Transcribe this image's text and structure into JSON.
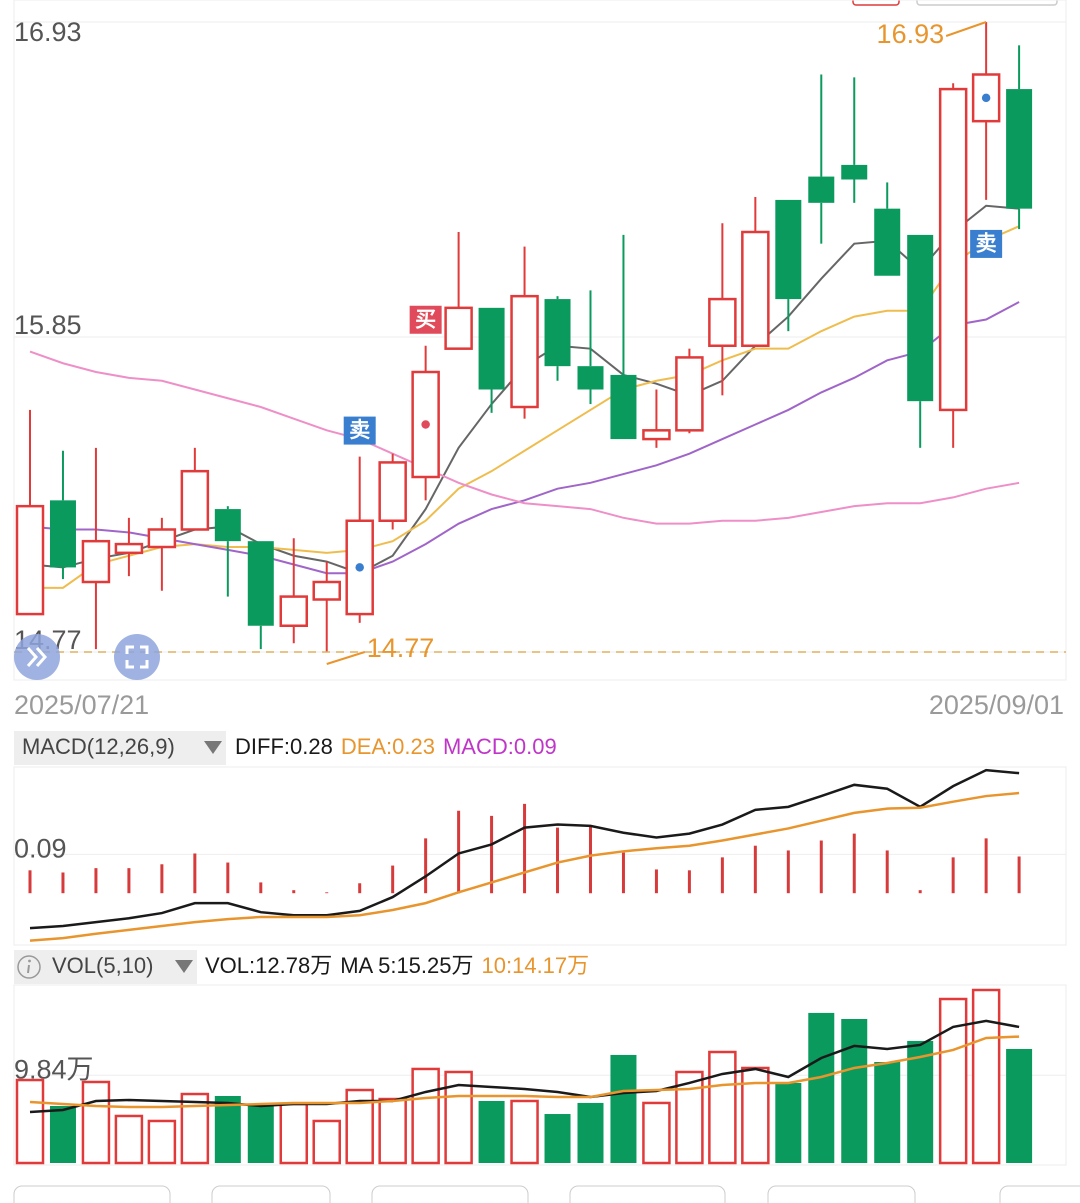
{
  "chart_data": [
    {
      "type": "candlestick",
      "categories": [
        "2025/07/21",
        null,
        null,
        null,
        null,
        null,
        null,
        null,
        null,
        null,
        null,
        null,
        null,
        null,
        null,
        null,
        null,
        null,
        null,
        null,
        null,
        null,
        null,
        null,
        null,
        null,
        null,
        null,
        null,
        null,
        "2025/09/01"
      ],
      "open": [
        14.9,
        15.29,
        15.01,
        15.11,
        15.13,
        15.19,
        15.26,
        15.15,
        14.86,
        14.95,
        14.9,
        15.22,
        15.37,
        15.81,
        15.95,
        15.61,
        15.98,
        15.75,
        15.72,
        15.5,
        15.53,
        15.82,
        15.82,
        16.32,
        16.4,
        16.44,
        16.29,
        16.2,
        15.6,
        16.59,
        16.7
      ],
      "high": [
        15.6,
        15.46,
        15.47,
        15.23,
        15.23,
        15.47,
        15.27,
        15.15,
        15.16,
        15.08,
        15.44,
        15.45,
        15.82,
        16.21,
        15.95,
        16.16,
        15.99,
        16.01,
        16.2,
        15.67,
        15.81,
        16.24,
        16.33,
        16.32,
        16.75,
        16.74,
        16.38,
        16.2,
        16.72,
        16.93,
        16.85
      ],
      "low": [
        14.9,
        15.02,
        14.78,
        15.03,
        14.98,
        15.19,
        14.96,
        14.78,
        14.8,
        14.77,
        14.87,
        15.19,
        15.29,
        15.81,
        15.59,
        15.57,
        15.7,
        15.62,
        15.5,
        15.47,
        15.52,
        15.65,
        15.82,
        15.87,
        16.17,
        16.31,
        16.06,
        15.47,
        15.47,
        16.32,
        16.22
      ],
      "close": [
        15.27,
        15.06,
        15.15,
        15.14,
        15.19,
        15.39,
        15.15,
        14.86,
        14.96,
        15.01,
        15.22,
        15.42,
        15.73,
        15.95,
        15.67,
        15.99,
        15.75,
        15.67,
        15.5,
        15.53,
        15.78,
        15.98,
        16.21,
        15.98,
        16.31,
        16.39,
        16.06,
        15.63,
        16.7,
        16.75,
        16.29
      ],
      "up_color": "#e03a3a",
      "down_color": "#0b9a5d",
      "ylim": [
        14.77,
        16.93
      ],
      "yticks": [
        16.93,
        15.85,
        14.77
      ],
      "grid": true,
      "lines": [
        {
          "color": "#666666",
          "values": [
            15.07,
            15.06,
            15.09,
            15.11,
            15.15,
            15.19,
            15.2,
            15.14,
            15.1,
            15.08,
            15.04,
            15.1,
            15.26,
            15.47,
            15.62,
            15.75,
            15.82,
            15.81,
            15.72,
            15.69,
            15.65,
            15.7,
            15.82,
            15.92,
            16.05,
            16.17,
            16.18,
            16.08,
            16.21,
            16.3,
            16.29
          ]
        },
        {
          "color": "#efbd4e",
          "values": [
            14.99,
            14.99,
            15.07,
            15.1,
            15.13,
            15.14,
            15.13,
            15.13,
            15.12,
            15.11,
            15.12,
            15.15,
            15.22,
            15.33,
            15.39,
            15.46,
            15.53,
            15.6,
            15.67,
            15.7,
            15.72,
            15.77,
            15.81,
            15.81,
            15.87,
            15.92,
            15.94,
            15.94,
            16.1,
            16.18,
            16.23
          ]
        },
        {
          "color": "#a065c8",
          "values": [
            15.2,
            15.19,
            15.19,
            15.18,
            15.16,
            15.14,
            15.12,
            15.1,
            15.07,
            15.04,
            15.04,
            15.08,
            15.14,
            15.21,
            15.26,
            15.29,
            15.33,
            15.35,
            15.38,
            15.41,
            15.45,
            15.5,
            15.55,
            15.6,
            15.66,
            15.71,
            15.77,
            15.8,
            15.89,
            15.91,
            15.97
          ]
        },
        {
          "color": "#ee8fc8",
          "values": [
            15.8,
            15.76,
            15.73,
            15.71,
            15.7,
            15.67,
            15.64,
            15.61,
            15.57,
            15.53,
            15.5,
            15.45,
            15.4,
            15.35,
            15.31,
            15.28,
            15.27,
            15.26,
            15.23,
            15.21,
            15.21,
            15.22,
            15.22,
            15.23,
            15.25,
            15.27,
            15.28,
            15.28,
            15.3,
            15.33,
            15.35
          ]
        }
      ],
      "signals": [
        null,
        null,
        null,
        null,
        null,
        null,
        null,
        null,
        null,
        null,
        {
          "label": "卖",
          "color": "#3a7fcf"
        },
        null,
        {
          "label": "买",
          "color": "#e04a5a"
        },
        null,
        null,
        null,
        null,
        null,
        null,
        null,
        null,
        null,
        null,
        null,
        null,
        null,
        null,
        null,
        null,
        {
          "label": "卖",
          "color": "#3a7fcf"
        },
        null
      ],
      "max_label": 16.93,
      "min_label": 14.77,
      "label_color": "#e8952e"
    },
    {
      "type": "bar",
      "title": "MACD(12,26,9)",
      "ylim": [
        -0.12,
        0.29
      ],
      "yticks": [
        0.09
      ],
      "grid": true,
      "series": [
        {
          "name": "DIFF:0.28",
          "kind": "line",
          "color": "#1a1a1a",
          "values": [
            -0.081,
            -0.076,
            -0.067,
            -0.058,
            -0.046,
            -0.023,
            -0.023,
            -0.044,
            -0.051,
            -0.051,
            -0.041,
            -0.009,
            0.039,
            0.092,
            0.113,
            0.152,
            0.159,
            0.156,
            0.14,
            0.129,
            0.138,
            0.159,
            0.193,
            0.2,
            0.225,
            0.251,
            0.242,
            0.2,
            0.248,
            0.285,
            0.278
          ]
        },
        {
          "name": "DEA:0.23",
          "kind": "line",
          "color": "#e8952e",
          "values": [
            -0.11,
            -0.104,
            -0.094,
            -0.085,
            -0.076,
            -0.067,
            -0.06,
            -0.055,
            -0.055,
            -0.055,
            -0.051,
            -0.039,
            -0.023,
            0.002,
            0.025,
            0.048,
            0.071,
            0.087,
            0.097,
            0.104,
            0.11,
            0.122,
            0.136,
            0.15,
            0.168,
            0.186,
            0.196,
            0.198,
            0.212,
            0.225,
            0.232
          ]
        },
        {
          "name": "MACD:0.09",
          "kind": "bar",
          "color": "#d63a3a",
          "label_color": "#c035c9",
          "values": [
            0.053,
            0.048,
            0.058,
            0.058,
            0.067,
            0.092,
            0.071,
            0.025,
            0.007,
            0.002,
            0.023,
            0.064,
            0.127,
            0.191,
            0.179,
            0.207,
            0.152,
            0.154,
            0.094,
            0.055,
            0.053,
            0.083,
            0.11,
            0.099,
            0.122,
            0.138,
            0.099,
            0.007,
            0.083,
            0.127,
            0.085
          ]
        }
      ]
    },
    {
      "type": "bar",
      "title": "VOL(5,10)",
      "ylim": [
        0,
        19.95
      ],
      "yticks": [
        {
          "value": 9.84,
          "label": "9.84万"
        }
      ],
      "grid": true,
      "series": [
        {
          "name": "VOL:12.78万",
          "kind": "bar",
          "color": "#1a1a1a",
          "values": [
            9.3,
            6.39,
            9.08,
            5.27,
            4.71,
            7.73,
            7.51,
            6.39,
            6.61,
            4.71,
            8.18,
            7.17,
            10.54,
            10.2,
            6.95,
            6.95,
            5.49,
            6.73,
            12.11,
            6.73,
            10.2,
            12.44,
            10.65,
            8.97,
            16.82,
            16.14,
            11.32,
            13.68,
            18.38,
            19.39,
            12.78
          ]
        },
        {
          "name": "MA 5:15.25万",
          "kind": "line",
          "color": "#1a1a1a",
          "values": [
            5.72,
            5.94,
            6.95,
            7.06,
            6.95,
            6.84,
            6.73,
            6.39,
            6.61,
            6.61,
            6.95,
            6.95,
            7.96,
            8.74,
            8.52,
            8.3,
            7.96,
            7.4,
            7.85,
            8.07,
            8.97,
            9.98,
            10.54,
            9.64,
            11.77,
            13.12,
            12.78,
            13.23,
            15.25,
            15.92,
            15.25
          ]
        },
        {
          "name": "10:14.17万",
          "kind": "line",
          "color": "#e8952e",
          "values": [
            6.84,
            6.61,
            6.39,
            6.28,
            6.28,
            6.39,
            6.5,
            6.61,
            6.73,
            6.73,
            6.73,
            6.95,
            7.29,
            7.51,
            7.51,
            7.51,
            7.4,
            7.4,
            8.07,
            8.18,
            8.3,
            8.74,
            8.97,
            8.97,
            9.64,
            10.65,
            11.21,
            11.88,
            12.67,
            14.01,
            14.17
          ]
        }
      ]
    }
  ]
}
